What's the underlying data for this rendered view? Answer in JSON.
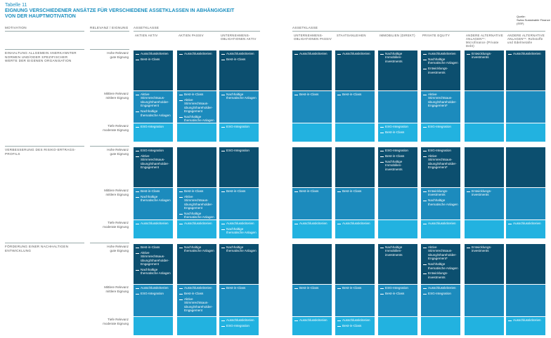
{
  "header": {
    "label": "Tabelle 11",
    "title_lines": [
      "EIGNUNG VERSCHIEDENER ANSÄTZE FÜR VERSCHIEDENE ASSETKLASSEN IN ABHÄNGIGKEIT",
      "VON DER HAUPTMOTIVATION"
    ],
    "source_lines": [
      "Quelle:",
      "Swiss Sustainable Finance (SSF)"
    ]
  },
  "table": {
    "head": {
      "motivation": "MOTIVATION",
      "relevance": "RELEVANZ / EIGNUNG",
      "assetclass_left": "ASSETKLASSE",
      "assetclass_right": "ASSETKLASSE"
    },
    "columns": [
      "AKTIEN AKTIV",
      "AKTIEN PASSIV",
      "UNTERNEHMENS-OBLIGATIONEN AKTIV",
      "UNTERNEHMENS-OBLIGATIONEN PASSIV",
      "STAATSANLEIHEN",
      "IMMOBILIEN (DIREKT)",
      "PRIVATE EQUITY",
      "ANDERE ALTERNATIVE ANLAGEN**: Microfinance (Private Debt)",
      "ANDERE ALTERNATIVE ANLAGEN**: Rohstoffe und Edelmetalle"
    ],
    "blocks": [
      {
        "motivation": "EINHALTUNG ALLGEMEIN ANERKANNTER NORMEN UND/ODER SPEZIFISCHER WERTE DER EIGENEN ORGANISATION",
        "rows": [
          {
            "relevance": [
              "Hohe Relevanz",
              "gute Eignung"
            ],
            "cells": [
              [
                "Ausschlusskriterien",
                "Best-in-Class"
              ],
              [
                "Ausschlusskriterien"
              ],
              [
                "Ausschlusskriterien",
                "Best-in-Class"
              ],
              [
                "Ausschlusskriterien"
              ],
              [
                "Ausschlusskriterien"
              ],
              [
                "Nachhaltige Immobilien-investments"
              ],
              [
                "Ausschlusskriterien",
                "Nachhaltige thematische Anlagen",
                "Entwicklungs-investments"
              ],
              [
                "Entwicklungs-investments"
              ],
              [
                "Ausschlusskriterien"
              ]
            ]
          },
          {
            "relevance": [
              "Mittlere Relevanz",
              "mittlere Eignung"
            ],
            "cells": [
              [
                "Aktive Stimmrechtsaus-übung/Shareholder-Engagement",
                "Nachhaltige thematische Anlagen"
              ],
              [
                "Best-in-Class",
                "Aktive Stimmrechtsaus-übung/Shareholder-Engagement",
                "Nachhaltige thematische Anlagen"
              ],
              [
                "Nachhaltige thematische Anlagen"
              ],
              [
                "Best-in-Class"
              ],
              [
                "Best-in-Class"
              ],
              [],
              [
                "Aktive Stimmrechtsaus-übung/Shareholder-Engagement*"
              ],
              [],
              []
            ]
          },
          {
            "relevance": [
              "Tiefe Relevanz",
              "moderate Eignung"
            ],
            "cells": [
              [
                "ESG-Integration"
              ],
              [],
              [
                "ESG-Integration"
              ],
              [],
              [],
              [
                "ESG-Integration",
                "Best-in-Class"
              ],
              [
                "ESG-Integration"
              ],
              [],
              []
            ]
          }
        ]
      },
      {
        "motivation": "VERBESSERUNG DES RISIKO-ERTRAGS-PROFILS",
        "rows": [
          {
            "relevance": [
              "Hohe Relevanz",
              "gute Eignung"
            ],
            "cells": [
              [
                "ESG-Integration",
                "Aktive Stimmrechtsaus-übung/Shareholder-Engagement"
              ],
              [],
              [
                "ESG-Integration"
              ],
              [],
              [],
              [
                "ESG-Integration",
                "Best-in-Class",
                "Nachhaltige Immobilien-investments"
              ],
              [
                "ESG-Integration",
                "Aktive Stimmrechtsaus-übung/Shareholder-Engagement*"
              ],
              [],
              []
            ]
          },
          {
            "relevance": [
              "Mittlere Relevanz",
              "mittlere Eignung"
            ],
            "cells": [
              [
                "Best-in-Class",
                "Nachhaltige thematische Anlagen"
              ],
              [
                "Best-in-Class",
                "Aktive Stimmrechtsaus-übung/Shareholder-Engagement",
                "Nachhaltige thematische Anlagen"
              ],
              [
                "Best-in-Class"
              ],
              [
                "Best-in-Class"
              ],
              [
                "Best-in-Class"
              ],
              [],
              [
                "Entwicklungs-investments",
                "Nachhaltige thematische Anlagen"
              ],
              [
                "Entwicklungs-investments"
              ],
              []
            ]
          },
          {
            "relevance": [
              "Tiefe Relevanz",
              "moderate Eignung"
            ],
            "cells": [
              [
                "Ausschlusskriterien"
              ],
              [
                "Ausschlusskriterien"
              ],
              [
                "Ausschlusskriterien",
                "Nachhaltige thematische Anlagen"
              ],
              [
                "Ausschlusskriterien"
              ],
              [
                "Ausschlusskriterien"
              ],
              [],
              [
                "Ausschlusskriterien"
              ],
              [],
              [
                "Ausschlusskriterien"
              ]
            ]
          }
        ]
      },
      {
        "motivation": "FÖRDERUNG EINER NACHHALTIGEN ENTWICKLUNG",
        "rows": [
          {
            "relevance": [
              "Hohe Relevanz",
              "gute Eignung"
            ],
            "cells": [
              [
                "Best-in-Class",
                "Aktive Stimmrechtsaus-übung/Shareholder-Engagement",
                "Nachhaltige thematische Anlagen"
              ],
              [
                "Nachhaltige thematische Anlagen"
              ],
              [
                "Nachhaltige thematische Anlagen"
              ],
              [],
              [],
              [
                "Nachhaltige Immobilien-investments"
              ],
              [
                "Aktive Stimmrechtsaus-übung/Shareholder-Engagement*",
                "Nachhaltige thematische Anlagen",
                "Entwicklungs-investments"
              ],
              [
                "Entwicklungs-investments"
              ],
              []
            ]
          },
          {
            "relevance": [
              "Mittlere Relevanz",
              "mittlere Eignung"
            ],
            "cells": [
              [
                "Ausschlusskriterien",
                "ESG-Integration"
              ],
              [
                "Ausschlusskriterien",
                "Best-in-Class",
                "Aktive Stimmrechtsaus-übung/Shareholder-Engagement"
              ],
              [
                "Best-in-Class"
              ],
              [
                "Best-in-Class"
              ],
              [
                "Best-in-Class"
              ],
              [
                "ESG-Integration",
                "Best-in-Class"
              ],
              [
                "Ausschlusskriterien",
                "ESG-Integration"
              ],
              [],
              []
            ]
          },
          {
            "relevance": [
              "Tiefe Relevanz",
              "moderate Eignung"
            ],
            "cells": [
              [],
              [],
              [
                "Ausschlusskriterien",
                "ESG-Integration"
              ],
              [
                "Ausschlusskriterien"
              ],
              [
                "Ausschlusskriterien",
                "Best-in-Class"
              ],
              [],
              [],
              [],
              [
                "Ausschlusskriterien"
              ]
            ]
          }
        ]
      }
    ]
  }
}
